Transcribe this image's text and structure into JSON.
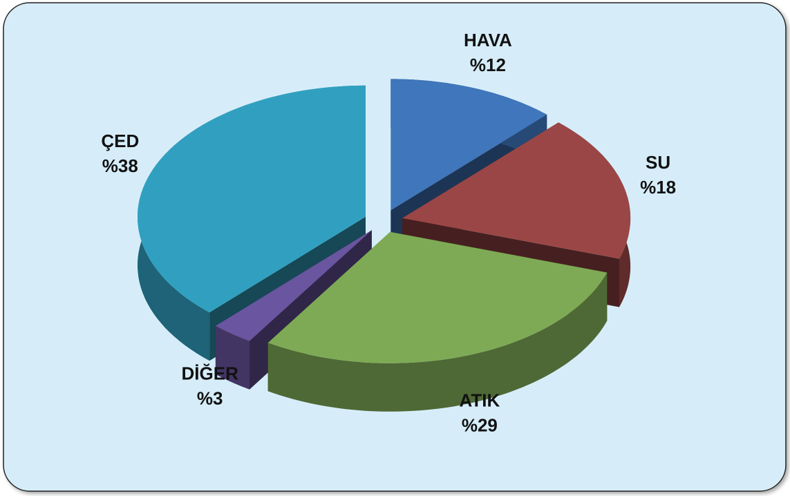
{
  "chart_data": {
    "type": "pie3d",
    "categories": [
      "HAVA",
      "SU",
      "ATIK",
      "DİĞER",
      "ÇED"
    ],
    "values": [
      12,
      18,
      29,
      3,
      38
    ],
    "value_labels": [
      "%12",
      "%18",
      "%29",
      "%3",
      "%38"
    ],
    "colors": [
      "#3f76bc",
      "#9b4646",
      "#7eaa55",
      "#6a55a0",
      "#31a0c0"
    ]
  }
}
